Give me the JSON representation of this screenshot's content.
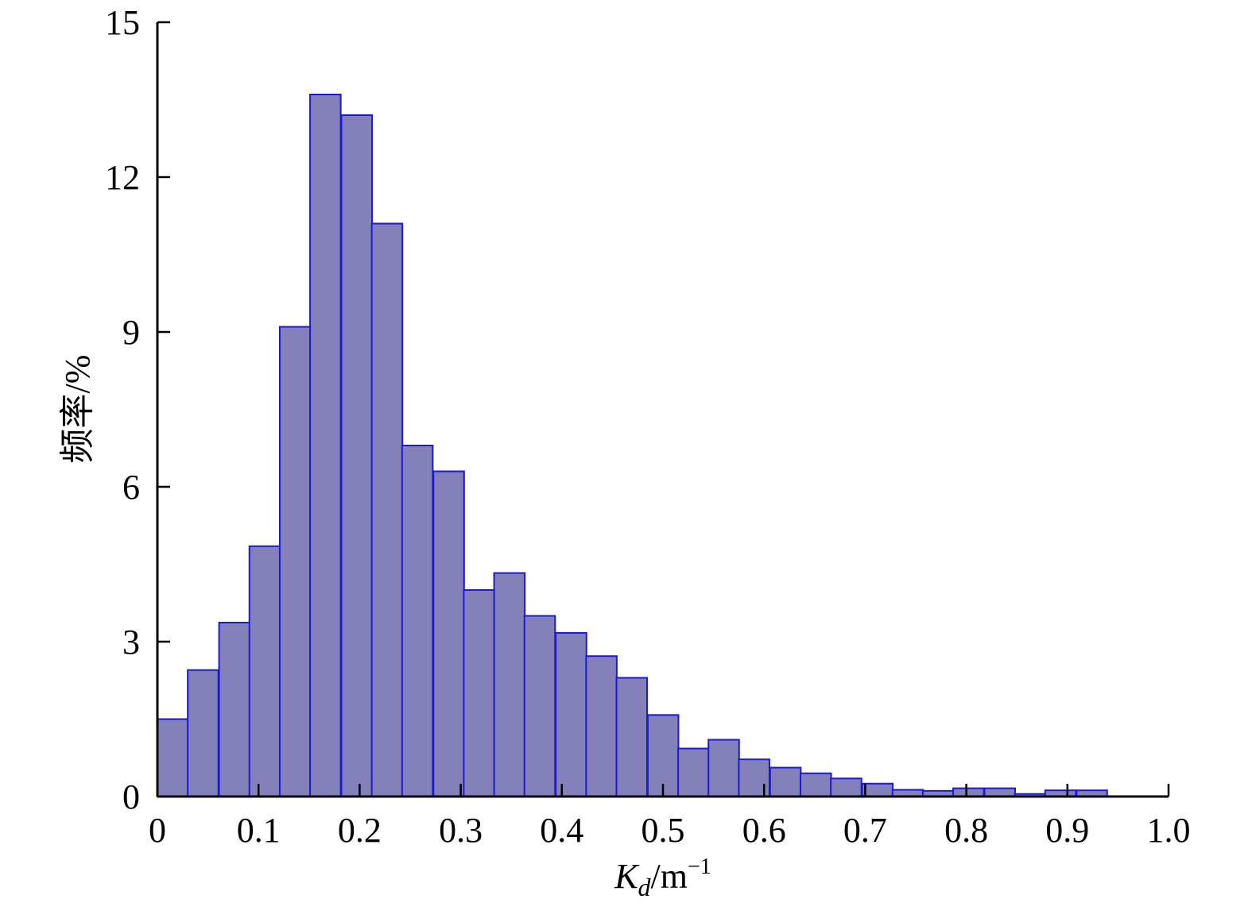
{
  "chart_data": {
    "type": "bar",
    "subtype": "histogram",
    "title": "",
    "xlabel_main": "K",
    "xlabel_sub": "d",
    "xlabel_unit": "/m",
    "xlabel_sup": "−1",
    "ylabel": "频率/%",
    "xlim": [
      0,
      1.0
    ],
    "ylim": [
      0,
      15
    ],
    "bin_width": 0.0303,
    "xticks": [
      0,
      0.1,
      0.2,
      0.3,
      0.4,
      0.5,
      0.6,
      0.7,
      0.8,
      0.9,
      1.0
    ],
    "xtick_labels": [
      "0",
      "0.1",
      "0.2",
      "0.3",
      "0.4",
      "0.5",
      "0.6",
      "0.7",
      "0.8",
      "0.9",
      "1.0"
    ],
    "yticks": [
      0,
      3,
      6,
      9,
      12,
      15
    ],
    "ytick_labels": [
      "0",
      "3",
      "6",
      "9",
      "12",
      "15"
    ],
    "bins": [
      {
        "x": 0.0,
        "value": 1.5
      },
      {
        "x": 0.03,
        "value": 2.45
      },
      {
        "x": 0.061,
        "value": 3.37
      },
      {
        "x": 0.091,
        "value": 4.85
      },
      {
        "x": 0.121,
        "value": 9.1
      },
      {
        "x": 0.151,
        "value": 13.6
      },
      {
        "x": 0.182,
        "value": 13.2
      },
      {
        "x": 0.212,
        "value": 11.1
      },
      {
        "x": 0.242,
        "value": 6.8
      },
      {
        "x": 0.273,
        "value": 6.3
      },
      {
        "x": 0.303,
        "value": 4.0
      },
      {
        "x": 0.333,
        "value": 4.33
      },
      {
        "x": 0.363,
        "value": 3.5
      },
      {
        "x": 0.394,
        "value": 3.17
      },
      {
        "x": 0.424,
        "value": 2.72
      },
      {
        "x": 0.454,
        "value": 2.3
      },
      {
        "x": 0.485,
        "value": 1.58
      },
      {
        "x": 0.515,
        "value": 0.93
      },
      {
        "x": 0.545,
        "value": 1.1
      },
      {
        "x": 0.575,
        "value": 0.72
      },
      {
        "x": 0.606,
        "value": 0.56
      },
      {
        "x": 0.636,
        "value": 0.45
      },
      {
        "x": 0.666,
        "value": 0.35
      },
      {
        "x": 0.697,
        "value": 0.25
      },
      {
        "x": 0.727,
        "value": 0.13
      },
      {
        "x": 0.757,
        "value": 0.11
      },
      {
        "x": 0.787,
        "value": 0.16
      },
      {
        "x": 0.818,
        "value": 0.16
      },
      {
        "x": 0.848,
        "value": 0.05
      },
      {
        "x": 0.878,
        "value": 0.12
      },
      {
        "x": 0.909,
        "value": 0.12
      }
    ],
    "colors": {
      "bar_fill": "#8480b9",
      "bar_stroke": "#1a1ad6",
      "axis": "#000000"
    },
    "grid": false,
    "legend": "none"
  }
}
